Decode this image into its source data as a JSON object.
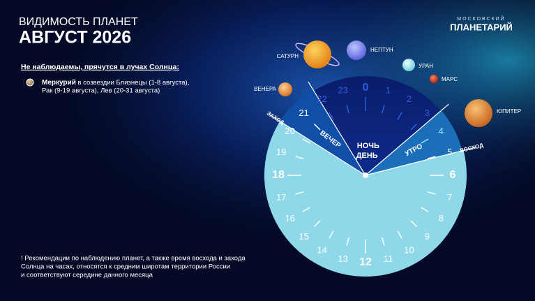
{
  "header": {
    "subtitle": "ВИДИМОСТЬ ПЛАНЕТ",
    "title": "АВГУСТ 2026"
  },
  "logo": {
    "top": "МОСКОВСКИЙ",
    "bottom": "ПЛАНЕТАРИЙ"
  },
  "not_visible": {
    "heading": "Не наблюдаемы, прячутся в лучах Солнца:",
    "items": [
      {
        "name": "Меркурий",
        "text": "в созвездии Близнецы (1-8 августа),",
        "text2": "Рак (9-19 августа), Лев (20-31 августа)"
      }
    ]
  },
  "planets": [
    "САТУРН",
    "НЕПТУН",
    "УРАН",
    "МАРС",
    "ВЕНЕРА",
    "ЮПИТЕР"
  ],
  "clock": {
    "hours": [
      0,
      1,
      2,
      3,
      4,
      5,
      6,
      7,
      8,
      9,
      10,
      11,
      12,
      13,
      14,
      15,
      16,
      17,
      18,
      19,
      20,
      21,
      22,
      23
    ],
    "night": "НОЧЬ",
    "morning": "УТРО",
    "day": "ДЕНЬ",
    "evening": "ВЕЧЕР",
    "sunset": "ЗАХОД",
    "sunrise": "ВОСХОД"
  },
  "footnote": [
    "! Рекомендации по наблюдению планет, а также время восхода и захода",
    "Солнца на часах, относятся к средним широтам территории России",
    "и соответствуют середине данного месяца"
  ]
}
